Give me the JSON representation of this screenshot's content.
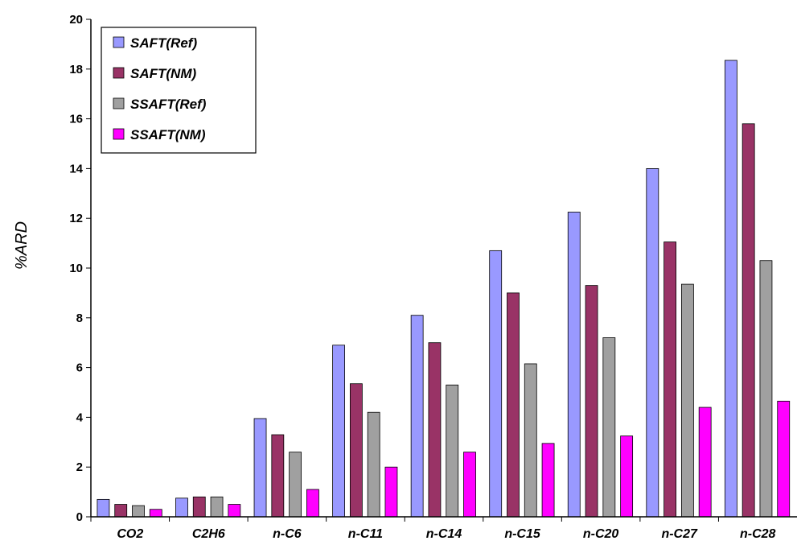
{
  "chart_data": {
    "type": "bar",
    "title": "",
    "xlabel": "",
    "ylabel": "%ARD",
    "ylim": [
      0,
      20
    ],
    "yticks": [
      "0",
      "2",
      "4",
      "6",
      "8",
      "10",
      "12",
      "14",
      "16",
      "18",
      "20"
    ],
    "grid": false,
    "legend_position": "top-left",
    "categories": [
      "CO2",
      "C2H6",
      "n-C6",
      "n-C11",
      "n-C14",
      "n-C15",
      "n-C20",
      "n-C27",
      "n-C28"
    ],
    "series": [
      {
        "name": "SAFT(Ref)",
        "color": "#9999ff",
        "values": [
          0.7,
          0.75,
          3.95,
          6.9,
          8.1,
          10.7,
          12.25,
          14.0,
          18.35
        ]
      },
      {
        "name": "SAFT(NM)",
        "color": "#993366",
        "values": [
          0.5,
          0.8,
          3.3,
          5.35,
          7.0,
          9.0,
          9.3,
          11.05,
          15.8
        ]
      },
      {
        "name": "SSAFT(Ref)",
        "color": "#a0a0a0",
        "values": [
          0.45,
          0.8,
          2.6,
          4.2,
          5.3,
          6.15,
          7.2,
          9.35,
          10.3
        ]
      },
      {
        "name": "SSAFT(NM)",
        "color": "#ff00ff",
        "values": [
          0.3,
          0.5,
          1.1,
          2.0,
          2.6,
          2.95,
          3.25,
          4.4,
          4.65
        ]
      }
    ]
  }
}
